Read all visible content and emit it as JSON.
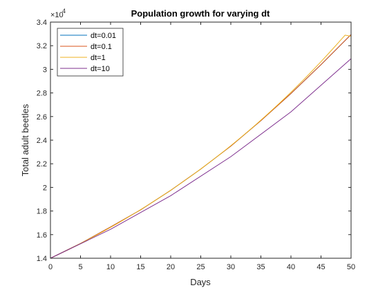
{
  "chart_data": {
    "type": "line",
    "title": "Population growth for varying dt",
    "xlabel": "Days",
    "ylabel": "Total adult beetles",
    "xlim": [
      0,
      50
    ],
    "ylim": [
      14000,
      34000
    ],
    "x_ticks": [
      0,
      5,
      10,
      15,
      20,
      25,
      30,
      35,
      40,
      45,
      50
    ],
    "x_tick_labels": [
      "0",
      "5",
      "10",
      "15",
      "20",
      "25",
      "30",
      "35",
      "40",
      "45",
      "50"
    ],
    "y_ticks": [
      14000,
      16000,
      18000,
      20000,
      22000,
      24000,
      26000,
      28000,
      30000,
      32000,
      34000
    ],
    "y_tick_labels": [
      "1.4",
      "1.6",
      "1.8",
      "2",
      "2.2",
      "2.4",
      "2.6",
      "2.8",
      "3",
      "3.2",
      "3.4"
    ],
    "y_exponent_label": "×10",
    "y_exponent_power": "4",
    "grid": false,
    "legend_position": "top-left",
    "series": [
      {
        "name": "dt=0.01",
        "color": "#0072BD",
        "x": [
          0,
          5,
          10,
          15,
          20,
          25,
          30,
          35,
          40,
          45,
          50
        ],
        "y": [
          14000,
          15250,
          16650,
          18100,
          19750,
          21550,
          23500,
          25650,
          27950,
          30400,
          32950
        ]
      },
      {
        "name": "dt=0.1",
        "color": "#D95319",
        "x": [
          0,
          5,
          10,
          15,
          20,
          25,
          30,
          35,
          40,
          45,
          50
        ],
        "y": [
          14000,
          15250,
          16650,
          18100,
          19750,
          21550,
          23500,
          25650,
          27950,
          30400,
          32950
        ]
      },
      {
        "name": "dt=1",
        "color": "#EDB120",
        "x": [
          0,
          1,
          2,
          3,
          4,
          5,
          6,
          7,
          8,
          9,
          10,
          11,
          12,
          13,
          14,
          15,
          16,
          17,
          18,
          19,
          20,
          21,
          22,
          23,
          24,
          25,
          26,
          27,
          28,
          29,
          30,
          31,
          32,
          33,
          34,
          35,
          36,
          37,
          38,
          39,
          40,
          41,
          42,
          43,
          44,
          45,
          46,
          47,
          48,
          49,
          50
        ],
        "y": [
          14000,
          14240,
          14484,
          14733,
          14987,
          15245,
          15509,
          15778,
          16051,
          16330,
          16614,
          16903,
          17198,
          17498,
          17804,
          18115,
          18432,
          18755,
          19084,
          19419,
          19760,
          20107,
          20461,
          20821,
          21188,
          21561,
          21941,
          22329,
          22723,
          23125,
          23534,
          23950,
          24375,
          24807,
          25247,
          25695,
          26151,
          26615,
          27088,
          27570,
          28060,
          28559,
          29068,
          29585,
          30112,
          30649,
          31196,
          31752,
          32319,
          32896,
          32800
        ]
      },
      {
        "name": "dt=10",
        "color": "#7E2F8E",
        "x": [
          0,
          10,
          20,
          30,
          40,
          50
        ],
        "y": [
          14000,
          16450,
          19300,
          22600,
          26400,
          30900
        ]
      }
    ]
  }
}
